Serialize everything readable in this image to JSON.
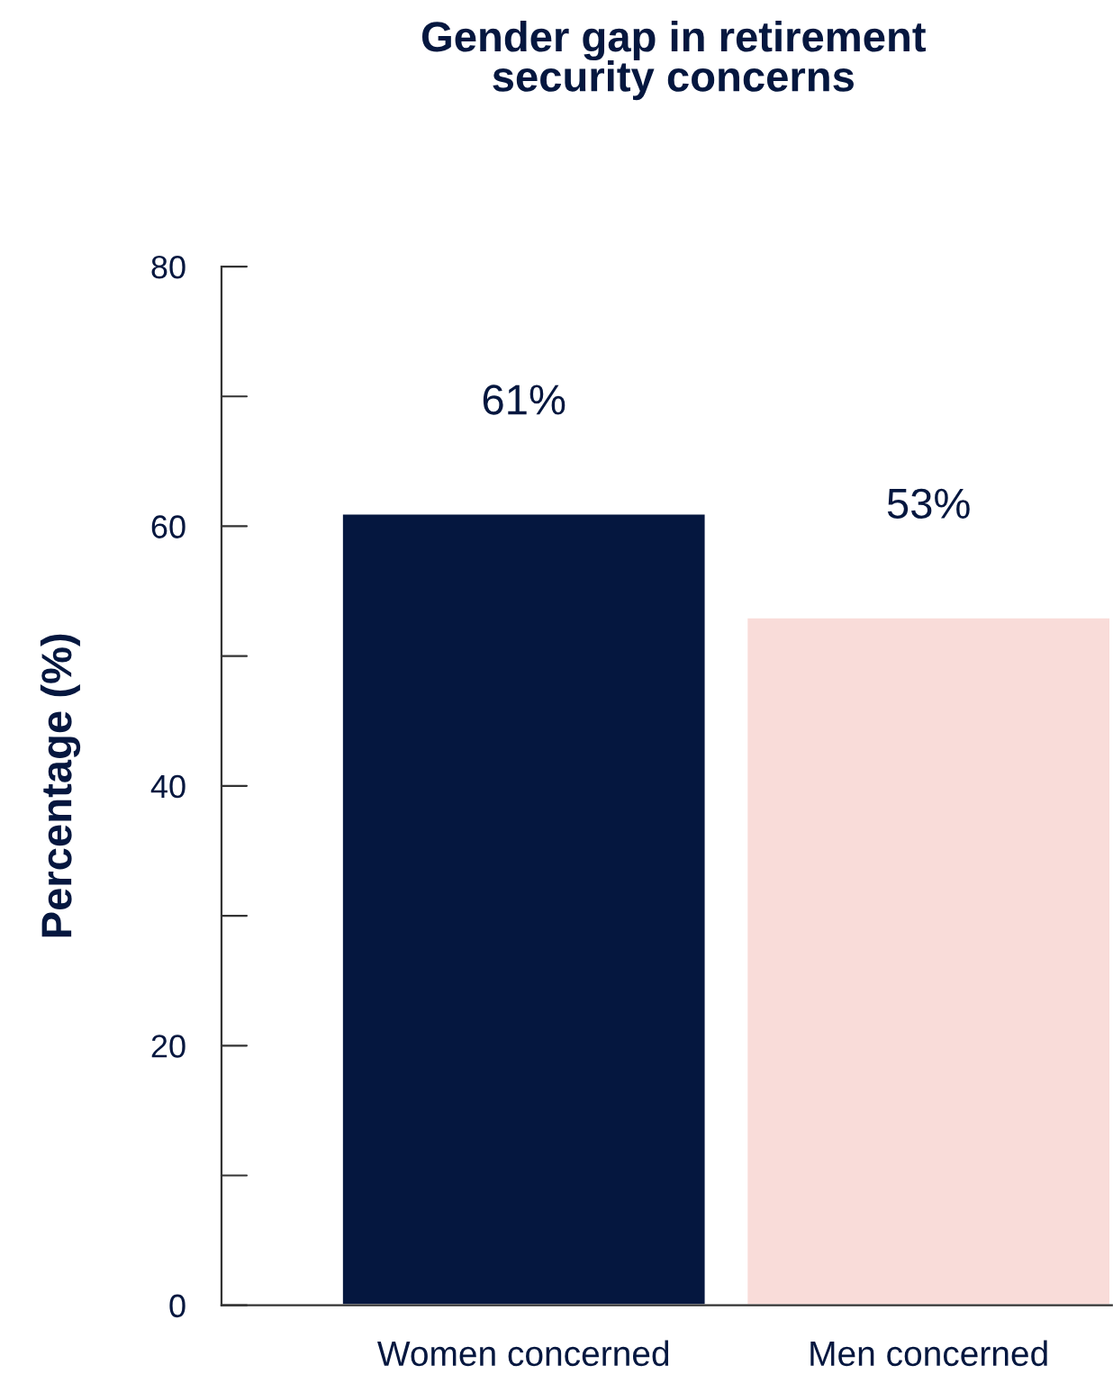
{
  "chart_data": {
    "type": "bar",
    "title": "Gender gap in retirement\nsecurity concerns",
    "ylabel": "Percentage (%)",
    "categories": [
      "Women concerned",
      "Men concerned"
    ],
    "values": [
      61,
      53
    ],
    "colors": [
      "#05173f",
      "#f9dcd9"
    ],
    "value_labels": [
      "61%",
      "53%"
    ],
    "ylim": [
      0,
      80
    ],
    "yticks": [
      0,
      {
        "value": 10,
        "label": null
      },
      20,
      {
        "value": 30,
        "label": null
      },
      40,
      {
        "value": 50,
        "label": null
      },
      60,
      {
        "value": 70,
        "label": null
      },
      80
    ],
    "grid": false
  }
}
